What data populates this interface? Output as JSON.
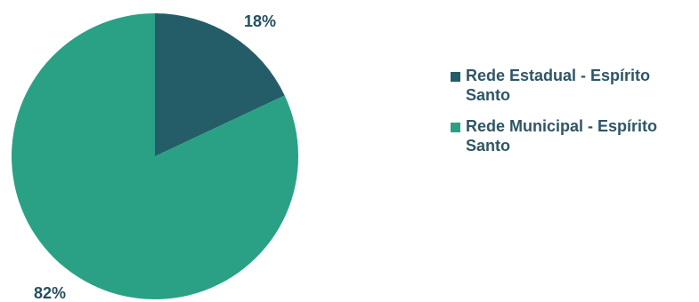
{
  "chart_data": {
    "type": "pie",
    "title": "",
    "slices": [
      {
        "label": "Rede Estadual - Espírito Santo",
        "value": 18,
        "display": "18%",
        "color": "#245d67"
      },
      {
        "label": "Rede Municipal - Espírito Santo",
        "value": 82,
        "display": "82%",
        "color": "#2aa185"
      }
    ],
    "legend_position": "right",
    "start_angle": "12 o'clock",
    "direction": "clockwise"
  }
}
